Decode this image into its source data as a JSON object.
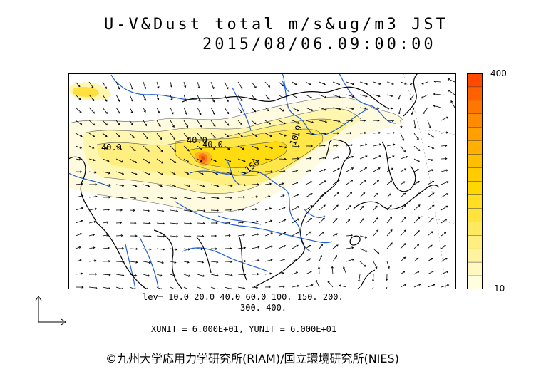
{
  "title": {
    "line1": "U-V&Dust total m/s&ug/m3 JST",
    "line2": "2015/08/06.09:00:00"
  },
  "legend": {
    "max_label": "400",
    "min_label": "10",
    "colors": [
      "#ffffe0",
      "#fff8c0",
      "#fff3a0",
      "#ffee80",
      "#ffe960",
      "#ffe440",
      "#ffdf20",
      "#ffd800",
      "#ffcc00",
      "#ffbf00",
      "#ffb000",
      "#ff9f00",
      "#ff8c00",
      "#ff7700",
      "#ff6000",
      "#ff4a00"
    ]
  },
  "contour_labels": [
    "40.0",
    "40.0",
    "40.0",
    "150",
    "10.0"
  ],
  "levels": {
    "line1": "lev= 10.0 20.0 40.0 60.0 100. 150. 200.",
    "line2": "300. 400."
  },
  "units": "XUNIT = 6.000E+01, YUNIT = 6.000E+01",
  "credit": "©九州大学応用力学研究所(RIAM)/国立環境研究所(NIES)",
  "colors": {
    "frame": "#000000",
    "rivers": "#1f5fd6",
    "coast": "#000000",
    "arrows": "#000000"
  }
}
